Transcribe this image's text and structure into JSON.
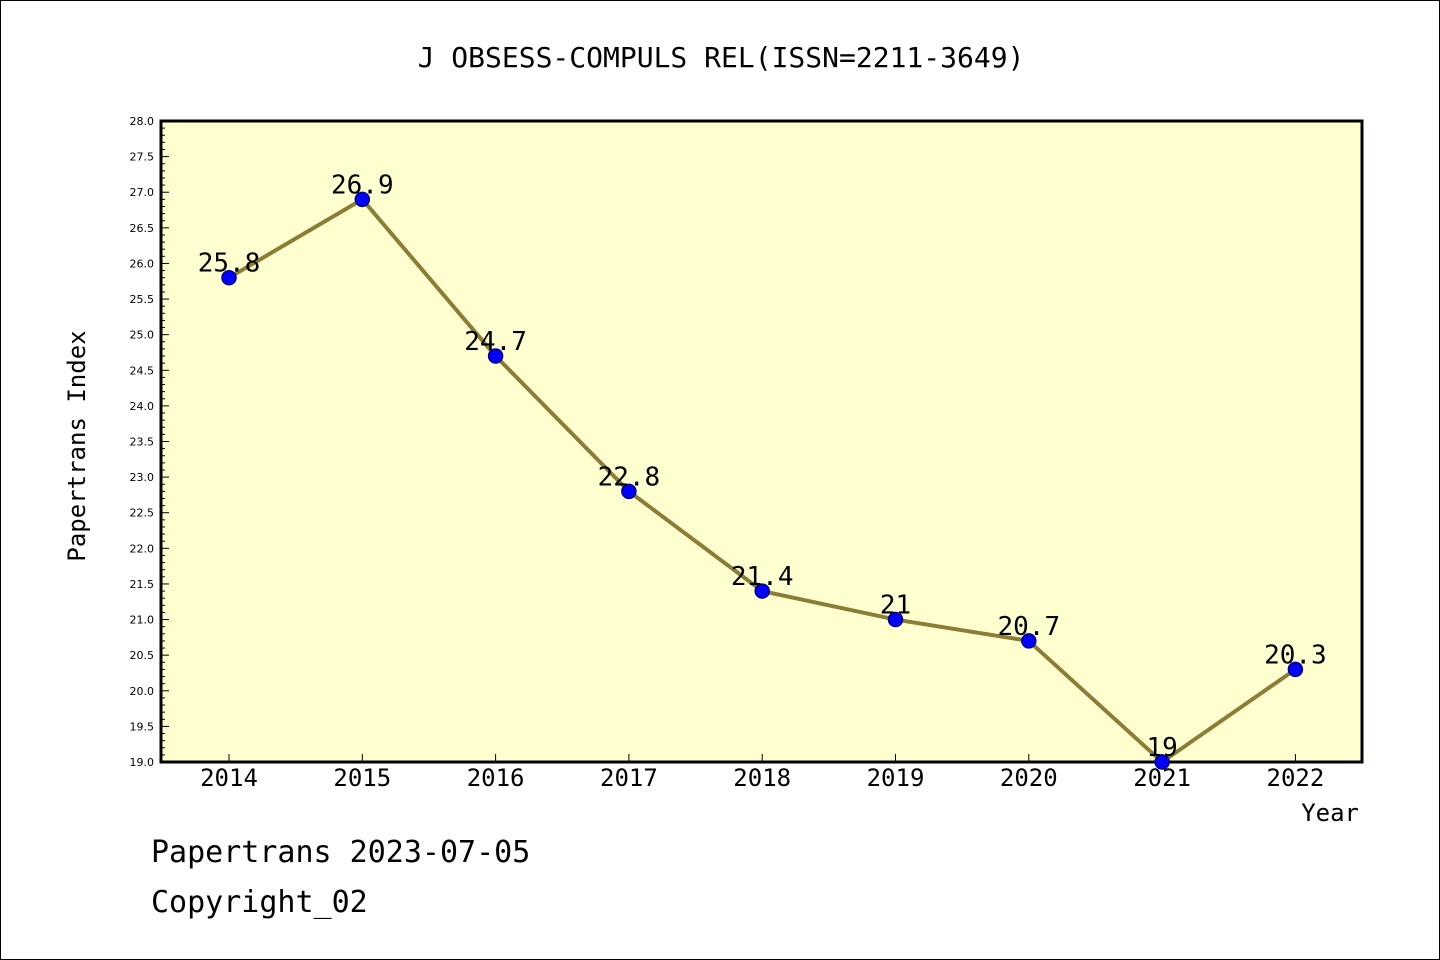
{
  "chart_data": {
    "type": "line",
    "title": "J OBSESS-COMPULS REL(ISSN=2211-3649)",
    "xlabel": "Year",
    "ylabel": "Papertrans Index",
    "categories": [
      "2014",
      "2015",
      "2016",
      "2017",
      "2018",
      "2019",
      "2020",
      "2021",
      "2022"
    ],
    "values": [
      25.8,
      26.9,
      24.7,
      22.8,
      21.4,
      21.0,
      20.7,
      19.0,
      20.3
    ],
    "data_labels": [
      "25.8",
      "26.9",
      "24.7",
      "22.8",
      "21.4",
      "21",
      "20.7",
      "19",
      "20.3"
    ],
    "ylim": [
      19.0,
      28.0
    ],
    "yticks": [
      "19.0",
      "19.5",
      "20.0",
      "20.5",
      "21.0",
      "21.5",
      "22.0",
      "22.5",
      "23.0",
      "23.5",
      "24.0",
      "24.5",
      "25.0",
      "25.5",
      "26.0",
      "26.5",
      "27.0",
      "27.5",
      "28.0"
    ],
    "grid": false,
    "legend": "none",
    "colors": {
      "plot_background": "#ffffd0",
      "line": "#8b7d35",
      "marker_fill": "#0000ff",
      "marker_edge": "#000080"
    }
  },
  "footer": {
    "line1": "Papertrans 2023-07-05",
    "line2": "Copyright_02"
  }
}
